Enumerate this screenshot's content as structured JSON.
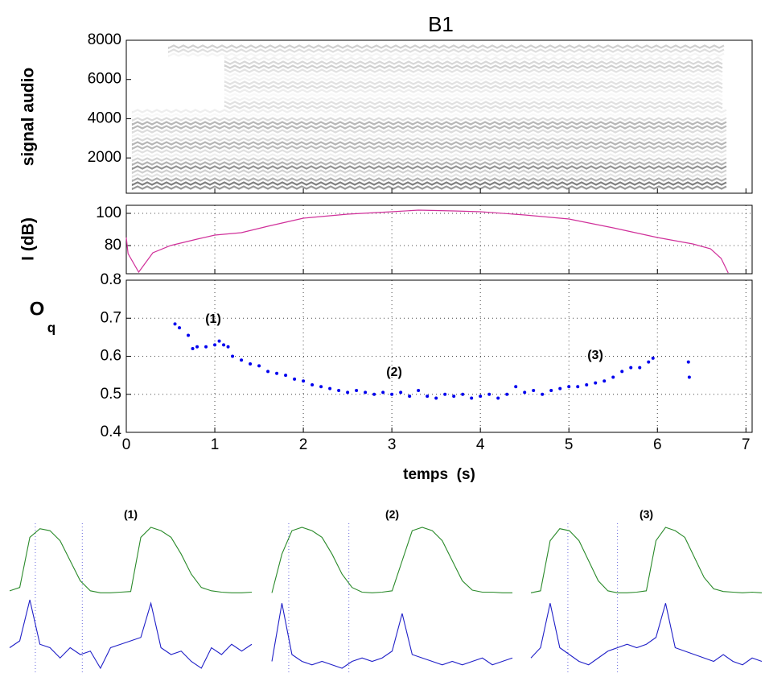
{
  "chart_data": [
    {
      "type": "spectrogram",
      "title": "B1",
      "ylabel": "signal audio",
      "xlim": [
        0,
        7.07
      ],
      "xticks": [
        0,
        1,
        2,
        3,
        4,
        5,
        6,
        7
      ],
      "ylim": [
        200,
        8000
      ],
      "yticks": [
        2000,
        4000,
        6000,
        8000
      ]
    },
    {
      "type": "line",
      "ylabel": "I (dB)",
      "grid": true,
      "xlim": [
        0,
        7.07
      ],
      "xticks": [
        0,
        1,
        2,
        3,
        4,
        5,
        6,
        7
      ],
      "ylim": [
        62.5,
        105
      ],
      "yticks": [
        80,
        100
      ],
      "x": [
        0,
        0.02,
        0.14,
        0.3,
        0.5,
        0.8,
        1.0,
        1.3,
        1.6,
        2.0,
        2.5,
        3.0,
        3.3,
        3.7,
        4.0,
        4.5,
        5.0,
        5.5,
        6.0,
        6.4,
        6.6,
        6.72,
        6.8
      ],
      "series": [
        {
          "color": "#d0309a",
          "values": [
            85,
            75,
            63.5,
            75.5,
            80,
            84,
            86.5,
            88,
            92,
            97,
            99.5,
            101,
            102,
            101.5,
            101,
            99,
            96.5,
            91,
            85,
            81,
            78,
            72,
            63
          ]
        }
      ]
    },
    {
      "type": "scatter",
      "ylabel": "O",
      "ylabel_subscript": "q",
      "xlabel": "temps  (s)",
      "grid": true,
      "xlim": [
        0,
        7.07
      ],
      "xticks": [
        0,
        1,
        2,
        3,
        4,
        5,
        6,
        7
      ],
      "ylim": [
        0.4,
        0.8
      ],
      "yticks": [
        0.4,
        0.5,
        0.6,
        0.7,
        0.8
      ],
      "annotations": [
        "(1)",
        "(2)",
        "(3)"
      ],
      "x": [
        0.55,
        0.6,
        0.7,
        0.75,
        0.8,
        0.9,
        1.0,
        1.05,
        1.1,
        1.15,
        1.2,
        1.3,
        1.4,
        1.5,
        1.6,
        1.7,
        1.8,
        1.9,
        2.0,
        2.1,
        2.2,
        2.3,
        2.4,
        2.5,
        2.6,
        2.7,
        2.8,
        2.9,
        3.0,
        3.1,
        3.2,
        3.3,
        3.4,
        3.5,
        3.6,
        3.7,
        3.8,
        3.9,
        4.0,
        4.1,
        4.2,
        4.3,
        4.4,
        4.5,
        4.6,
        4.7,
        4.8,
        4.9,
        5.0,
        5.1,
        5.2,
        5.3,
        5.4,
        5.5,
        5.6,
        5.7,
        5.8,
        5.9,
        5.95,
        6.35,
        6.36
      ],
      "series": [
        {
          "color": "#0000ee",
          "values": [
            0.685,
            0.675,
            0.655,
            0.62,
            0.625,
            0.625,
            0.63,
            0.64,
            0.63,
            0.625,
            0.6,
            0.59,
            0.58,
            0.575,
            0.56,
            0.555,
            0.55,
            0.54,
            0.535,
            0.525,
            0.52,
            0.515,
            0.51,
            0.505,
            0.51,
            0.505,
            0.5,
            0.505,
            0.5,
            0.505,
            0.495,
            0.51,
            0.495,
            0.49,
            0.5,
            0.495,
            0.5,
            0.49,
            0.495,
            0.5,
            0.49,
            0.5,
            0.52,
            0.505,
            0.51,
            0.5,
            0.51,
            0.515,
            0.52,
            0.52,
            0.525,
            0.53,
            0.535,
            0.545,
            0.56,
            0.57,
            0.57,
            0.585,
            0.595,
            0.585,
            0.545
          ]
        }
      ]
    },
    {
      "type": "waveforms",
      "panels": [
        {
          "title": "(1)",
          "series": [
            {
              "color": "#2a8a2a",
              "values": [
                0.05,
                0.1,
                0.85,
                0.98,
                0.95,
                0.8,
                0.5,
                0.2,
                0.05,
                0.02,
                0.02,
                0.03,
                0.04,
                0.85,
                1.0,
                0.95,
                0.85,
                0.6,
                0.3,
                0.1,
                0.05,
                0.03,
                0.02,
                0.02,
                0.03
              ]
            },
            {
              "color": "#2020c8",
              "values": [
                0.3,
                0.4,
                1.0,
                0.35,
                0.3,
                0.15,
                0.3,
                0.2,
                0.25,
                0.0,
                0.3,
                0.35,
                0.4,
                0.45,
                0.95,
                0.3,
                0.2,
                0.25,
                0.1,
                0.0,
                0.3,
                0.2,
                0.35,
                0.25,
                0.35
              ]
            }
          ]
        },
        {
          "title": "(2)",
          "series": [
            {
              "color": "#2a8a2a",
              "values": [
                0.02,
                0.6,
                0.95,
                1.0,
                0.95,
                0.85,
                0.6,
                0.3,
                0.1,
                0.03,
                0.02,
                0.03,
                0.05,
                0.5,
                0.95,
                1.0,
                0.95,
                0.8,
                0.5,
                0.2,
                0.06,
                0.03,
                0.03,
                0.02,
                0.02
              ]
            },
            {
              "color": "#2020c8",
              "values": [
                0.1,
                0.95,
                0.2,
                0.1,
                0.05,
                0.1,
                0.05,
                0.0,
                0.1,
                0.15,
                0.1,
                0.15,
                0.25,
                0.8,
                0.2,
                0.15,
                0.1,
                0.05,
                0.1,
                0.05,
                0.1,
                0.15,
                0.05,
                0.1,
                0.15
              ]
            }
          ]
        },
        {
          "title": "(3)",
          "series": [
            {
              "color": "#2a8a2a",
              "values": [
                0.02,
                0.05,
                0.8,
                0.98,
                0.95,
                0.8,
                0.5,
                0.2,
                0.05,
                0.02,
                0.02,
                0.03,
                0.05,
                0.8,
                1.0,
                0.95,
                0.85,
                0.55,
                0.25,
                0.08,
                0.04,
                0.03,
                0.02,
                0.03,
                0.02
              ]
            },
            {
              "color": "#2020c8",
              "values": [
                0.15,
                0.3,
                0.95,
                0.3,
                0.2,
                0.1,
                0.05,
                0.15,
                0.25,
                0.3,
                0.35,
                0.3,
                0.35,
                0.45,
                0.95,
                0.3,
                0.25,
                0.2,
                0.15,
                0.1,
                0.2,
                0.1,
                0.05,
                0.15,
                0.1
              ]
            }
          ]
        }
      ]
    }
  ]
}
